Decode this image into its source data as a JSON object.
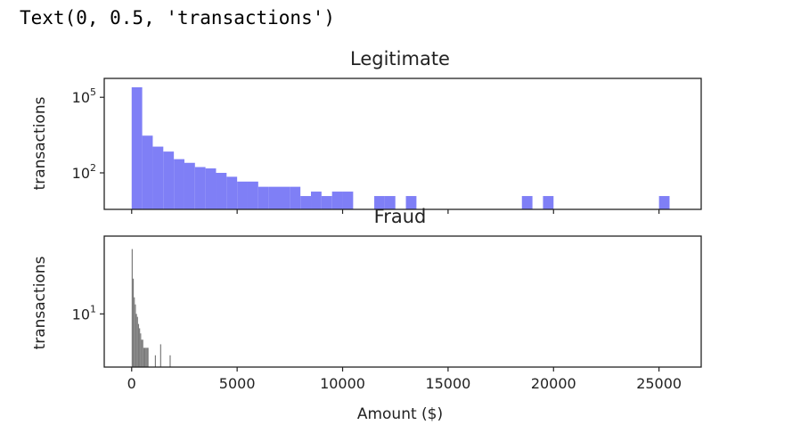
{
  "output_text": "Text(0, 0.5, 'transactions')",
  "chart_data": [
    {
      "type": "bar",
      "title": "Legitimate",
      "ylabel": "transactions",
      "yscale": "log",
      "ytick_labels": [
        {
          "value": 100,
          "base": "10",
          "exp": "2"
        },
        {
          "value": 100000,
          "base": "10",
          "exp": "5"
        }
      ],
      "color": "#7f7ff6",
      "bin_width": 500,
      "bins": [
        {
          "x0": 0,
          "count": 250000
        },
        {
          "x0": 500,
          "count": 3000
        },
        {
          "x0": 1000,
          "count": 1100
        },
        {
          "x0": 1500,
          "count": 700
        },
        {
          "x0": 2000,
          "count": 350
        },
        {
          "x0": 2500,
          "count": 250
        },
        {
          "x0": 3000,
          "count": 170
        },
        {
          "x0": 3500,
          "count": 150
        },
        {
          "x0": 4000,
          "count": 100
        },
        {
          "x0": 4500,
          "count": 70
        },
        {
          "x0": 5000,
          "count": 45
        },
        {
          "x0": 5500,
          "count": 45
        },
        {
          "x0": 6000,
          "count": 28
        },
        {
          "x0": 6500,
          "count": 28
        },
        {
          "x0": 7000,
          "count": 28
        },
        {
          "x0": 7500,
          "count": 28
        },
        {
          "x0": 8000,
          "count": 12
        },
        {
          "x0": 8500,
          "count": 18
        },
        {
          "x0": 9000,
          "count": 12
        },
        {
          "x0": 9500,
          "count": 18
        },
        {
          "x0": 10000,
          "count": 18
        },
        {
          "x0": 11500,
          "count": 12
        },
        {
          "x0": 12000,
          "count": 12
        },
        {
          "x0": 13000,
          "count": 12
        },
        {
          "x0": 18500,
          "count": 12
        },
        {
          "x0": 19500,
          "count": 12
        },
        {
          "x0": 25000,
          "count": 12
        }
      ]
    },
    {
      "type": "bar",
      "title": "Fraud",
      "xlabel": "Amount ($)",
      "ylabel": "transactions",
      "yscale": "log",
      "ytick_labels": [
        {
          "value": 10,
          "base": "10",
          "exp": "1"
        }
      ],
      "color": "#7a7a7a",
      "bin_width": 50,
      "bins": [
        {
          "x0": 0,
          "count": 100
        },
        {
          "x0": 50,
          "count": 35
        },
        {
          "x0": 100,
          "count": 18
        },
        {
          "x0": 150,
          "count": 14
        },
        {
          "x0": 200,
          "count": 10
        },
        {
          "x0": 250,
          "count": 9
        },
        {
          "x0": 300,
          "count": 7
        },
        {
          "x0": 350,
          "count": 6
        },
        {
          "x0": 400,
          "count": 5
        },
        {
          "x0": 450,
          "count": 4
        },
        {
          "x0": 500,
          "count": 4
        },
        {
          "x0": 550,
          "count": 3
        },
        {
          "x0": 600,
          "count": 3
        },
        {
          "x0": 650,
          "count": 3
        },
        {
          "x0": 700,
          "count": 3
        },
        {
          "x0": 750,
          "count": 3
        },
        {
          "x0": 1100,
          "count": 2.3
        },
        {
          "x0": 1350,
          "count": 3.4
        },
        {
          "x0": 1800,
          "count": 2.3
        }
      ]
    }
  ],
  "x_axis": {
    "range": [
      -1300,
      27000
    ],
    "ticks": [
      0,
      5000,
      10000,
      15000,
      20000,
      25000
    ],
    "tick_labels": [
      "0",
      "5000",
      "10000",
      "15000",
      "20000",
      "25000"
    ]
  }
}
